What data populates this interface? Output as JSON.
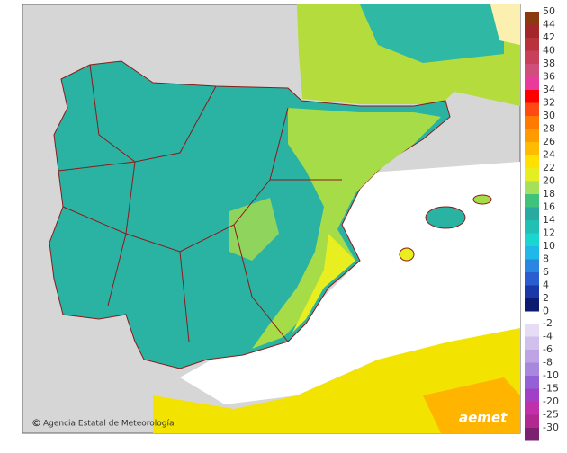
{
  "legend": {
    "positive": {
      "labels": [
        50,
        44,
        42,
        40,
        38,
        36,
        34,
        32,
        30,
        28,
        26,
        24,
        22,
        20,
        18,
        16,
        14,
        12,
        10,
        8,
        6,
        4,
        2,
        0
      ],
      "colors": [
        "#8b3a0f",
        "#a3262b",
        "#b8323e",
        "#c8405a",
        "#d04e7a",
        "#e83b9c",
        "#ff0000",
        "#ff4a14",
        "#ff7a00",
        "#ff9a00",
        "#ffbb00",
        "#ffe000",
        "#e4ee20",
        "#a6e05a",
        "#3fc27a",
        "#2aa9a0",
        "#22c0b4",
        "#19d6d0",
        "#20b8e8",
        "#2a86e0",
        "#2a5ed0",
        "#1a38a8",
        "#0c1a70"
      ]
    },
    "negative": {
      "labels": [
        -2,
        -4,
        -6,
        -8,
        -10,
        -15,
        -20,
        -25,
        -30
      ],
      "colors": [
        "#e6dcf4",
        "#d2c0ec",
        "#bea4e4",
        "#a888dc",
        "#9360d6",
        "#a040c8",
        "#c030a8",
        "#b02890",
        "#7c2070"
      ]
    }
  },
  "footer": {
    "copyright": "©",
    "agency": "Agencia Estatal de Meteorología",
    "logo": "aemet"
  }
}
